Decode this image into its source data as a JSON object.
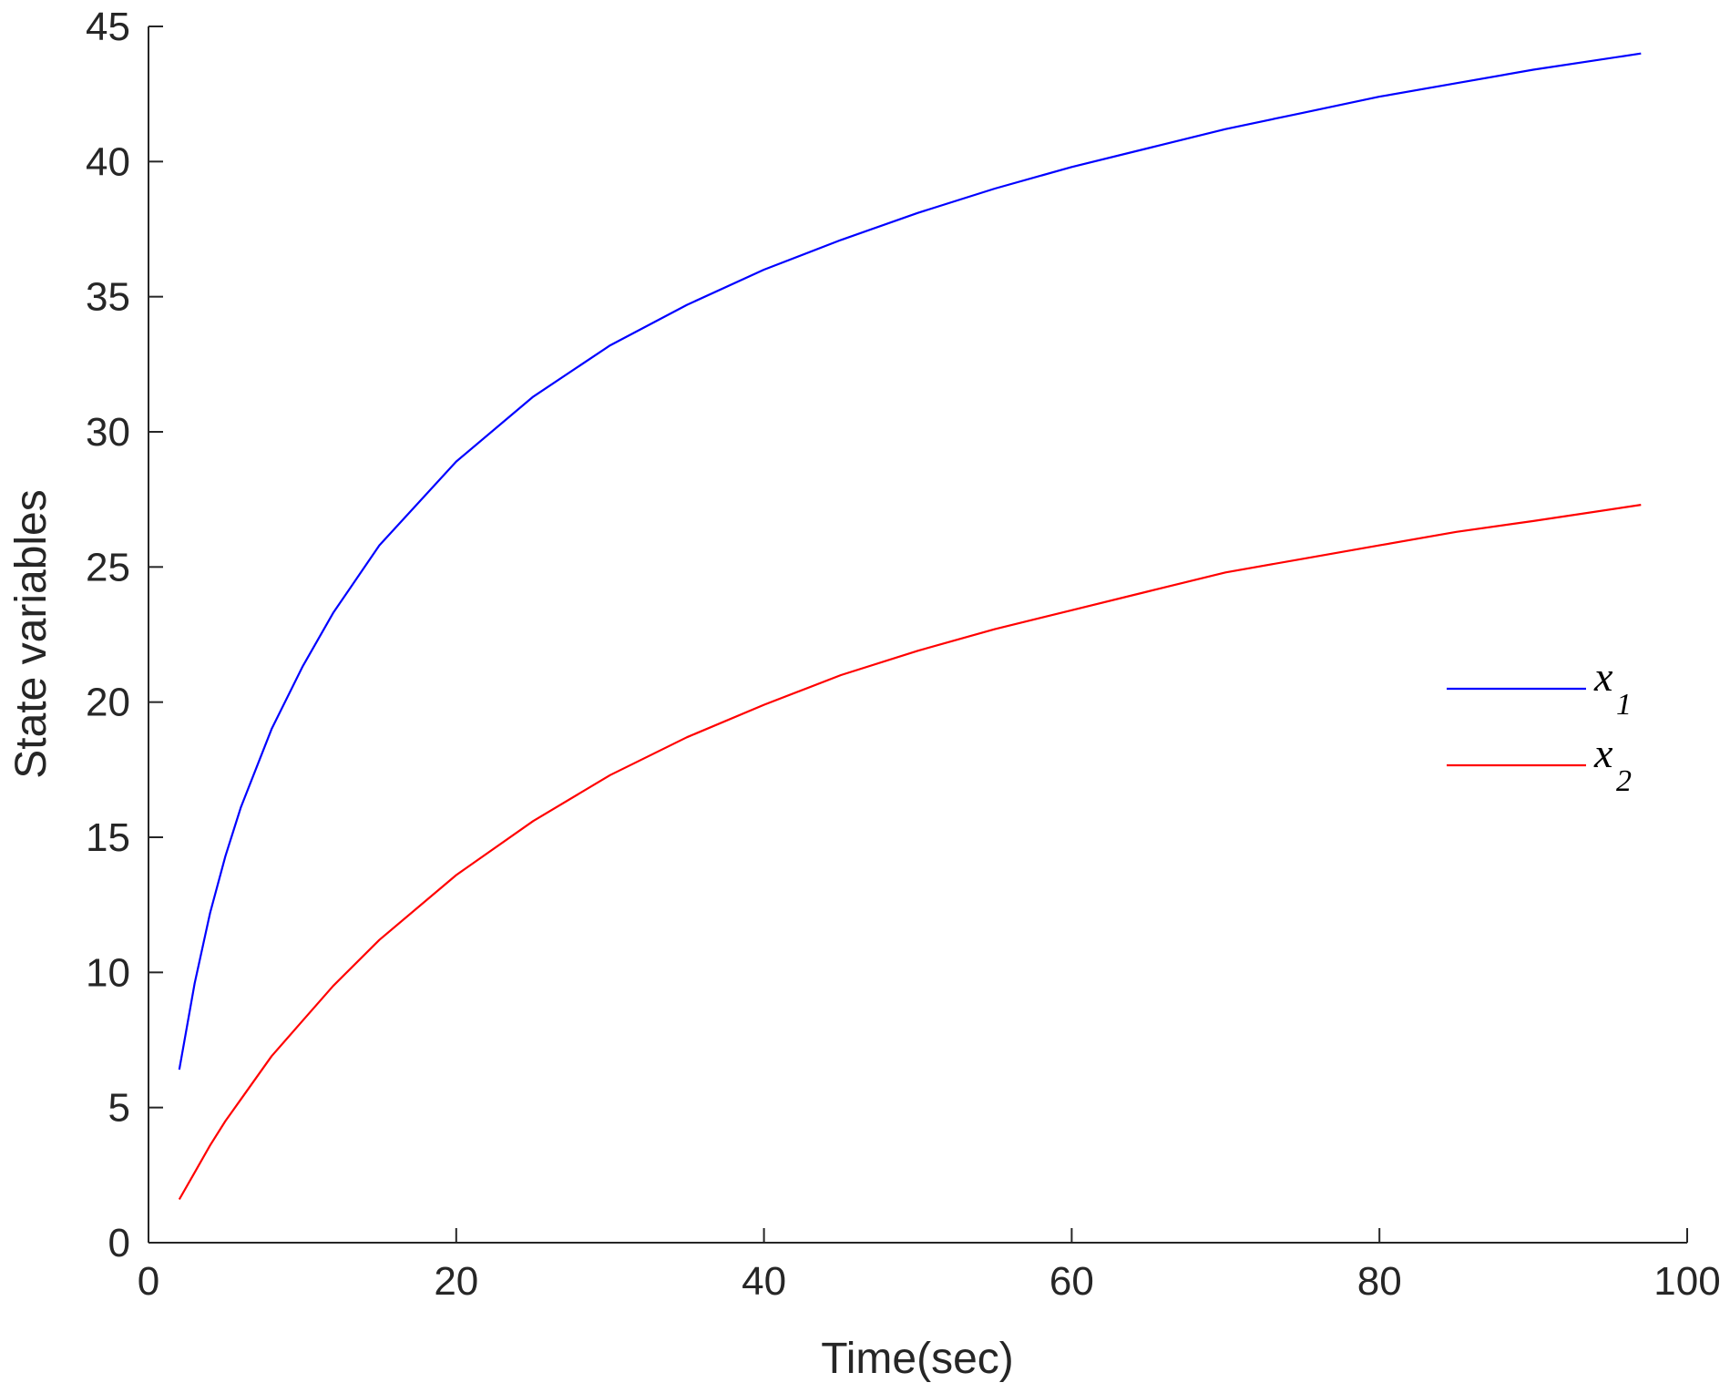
{
  "chart_data": {
    "type": "line",
    "title": "",
    "xlabel": "Time(sec)",
    "ylabel": "State variables",
    "xlim": [
      0,
      100
    ],
    "ylim": [
      0,
      45
    ],
    "xticks": [
      0,
      20,
      40,
      60,
      80,
      100
    ],
    "yticks": [
      0,
      5,
      10,
      15,
      20,
      25,
      30,
      35,
      40,
      45
    ],
    "grid": false,
    "legend_position": "right",
    "x": [
      2,
      3,
      4,
      5,
      6,
      8,
      10,
      12,
      15,
      20,
      25,
      30,
      35,
      40,
      45,
      50,
      55,
      60,
      65,
      70,
      75,
      80,
      85,
      90,
      97
    ],
    "series": [
      {
        "name": "x",
        "subscript": "1",
        "color": "#0000ff",
        "values": [
          6.4,
          9.6,
          12.2,
          14.3,
          16.1,
          19.0,
          21.3,
          23.3,
          25.8,
          28.9,
          31.3,
          33.2,
          34.7,
          36.0,
          37.1,
          38.1,
          39.0,
          39.8,
          40.5,
          41.2,
          41.8,
          42.4,
          42.9,
          43.4,
          44.0
        ]
      },
      {
        "name": "x",
        "subscript": "2",
        "color": "#ff0000",
        "values": [
          1.6,
          2.6,
          3.6,
          4.5,
          5.3,
          6.9,
          8.2,
          9.5,
          11.2,
          13.6,
          15.6,
          17.3,
          18.7,
          19.9,
          21.0,
          21.9,
          22.7,
          23.4,
          24.1,
          24.8,
          25.3,
          25.8,
          26.3,
          26.7,
          27.3
        ]
      }
    ]
  }
}
